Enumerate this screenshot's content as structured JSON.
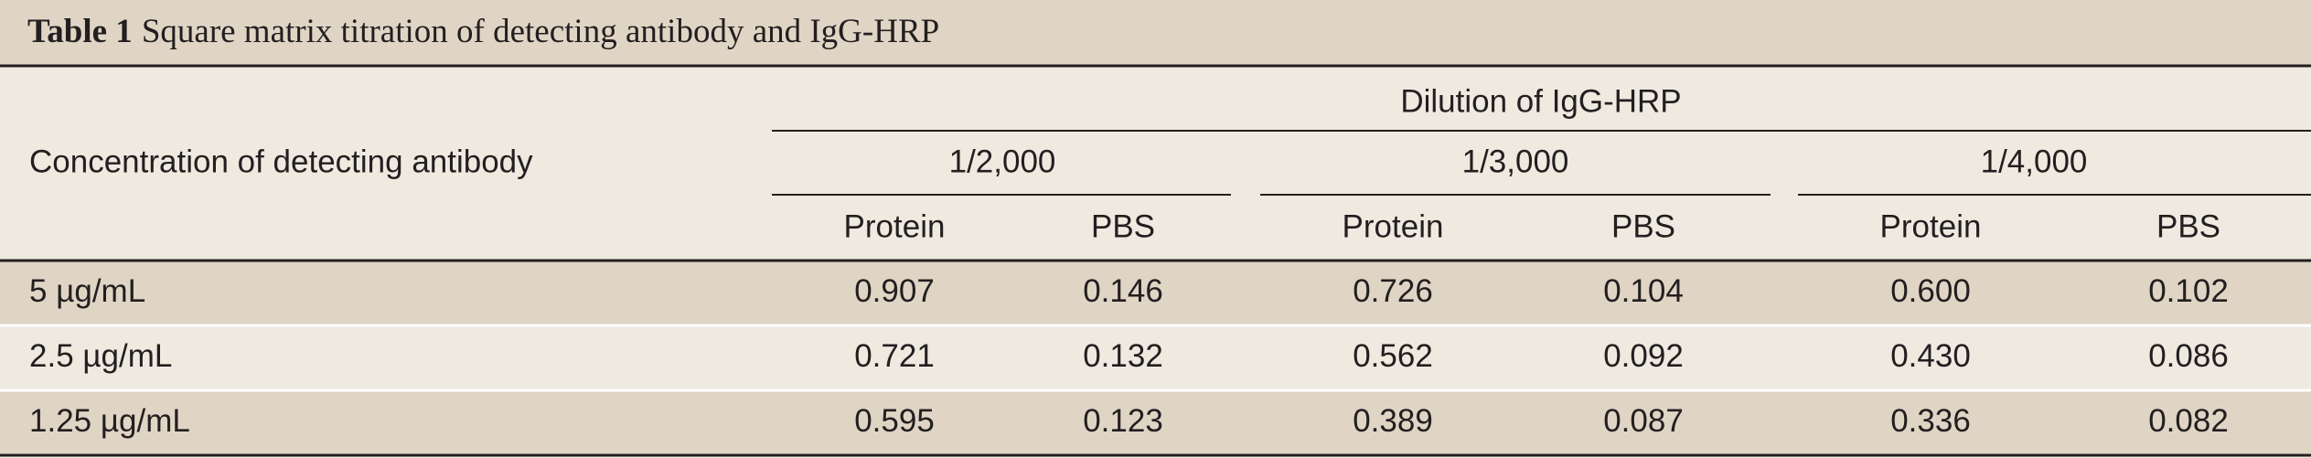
{
  "table": {
    "title": {
      "label": "Table 1",
      "text": "Square matrix titration of detecting antibody and IgG-HRP"
    },
    "row_header": "Concentration of detecting antibody",
    "column_group_header": "Dilution of IgG-HRP",
    "groups": [
      "1/2,000",
      "1/3,000",
      "1/4,000"
    ],
    "subheaders": [
      "Protein",
      "PBS",
      "Protein",
      "PBS",
      "Protein",
      "PBS"
    ],
    "rows": [
      [
        "5 µg/mL",
        "0.907",
        "0.146",
        "0.726",
        "0.104",
        "0.600",
        "0.102"
      ],
      [
        "2.5 µg/mL",
        "0.721",
        "0.132",
        "0.562",
        "0.092",
        "0.430",
        "0.086"
      ],
      [
        "1.25 µg/mL",
        "0.595",
        "0.123",
        "0.389",
        "0.087",
        "0.336",
        "0.082"
      ]
    ]
  }
}
